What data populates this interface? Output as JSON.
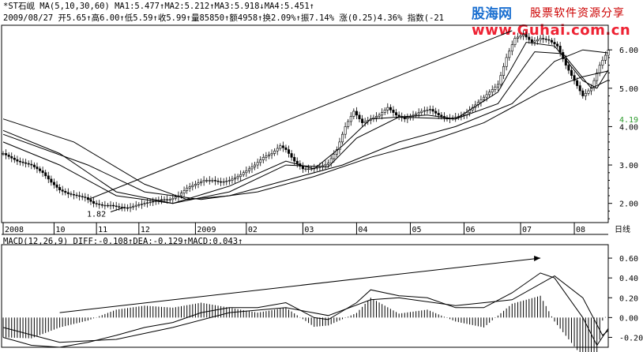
{
  "header": {
    "line1": "*ST石岘 MA(5,10,30,60) MA1:5.477↑MA2:5.212↑MA3:5.918↓MA4:5.451↑",
    "line2": "2009/08/27 开5.65↑高6.00↑低5.59↑收5.99↑量85850↑额4958↑换2.09%↑振7.14% 涨(0.25)4.36% 指数(-21"
  },
  "macd_header": "MACD(12,26,9) DIFF:-0.108↑DEA:-0.129↑MACD:0.043↑",
  "logo": {
    "main": "股海网",
    "sub": "股票软件资源分享",
    "url": "www.Guhai.com.cn"
  },
  "period_label": "日线",
  "colors": {
    "line": "#000000",
    "current_price": "#2a9a2a",
    "logo_blue": "#1a6fd0",
    "logo_red": "#e02020"
  },
  "chart_data": [
    {
      "type": "line",
      "name": "price",
      "title": "",
      "x_labels": [
        "2008",
        "10",
        "11",
        "12",
        "2009",
        "02",
        "03",
        "04",
        "05",
        "06",
        "07",
        "08"
      ],
      "ylim": [
        1.5,
        6.6
      ],
      "yticks": [
        "6.00",
        "5.00",
        "4.00",
        "3.00",
        "2.00"
      ],
      "current_price": "4.19",
      "low_annotation": "1.82",
      "close_points": [
        [
          0,
          3.3
        ],
        [
          5,
          3.1
        ],
        [
          10,
          3.0
        ],
        [
          14,
          2.8
        ],
        [
          17,
          2.55
        ],
        [
          20,
          2.35
        ],
        [
          23,
          2.25
        ],
        [
          26,
          2.2
        ],
        [
          29,
          2.15
        ],
        [
          32,
          2.0
        ],
        [
          35,
          1.95
        ],
        [
          38,
          1.95
        ],
        [
          41,
          1.9
        ],
        [
          44,
          1.88
        ],
        [
          47,
          1.95
        ],
        [
          50,
          2.0
        ],
        [
          53,
          2.05
        ],
        [
          56,
          2.1
        ],
        [
          59,
          2.1
        ],
        [
          62,
          2.2
        ],
        [
          65,
          2.4
        ],
        [
          68,
          2.5
        ],
        [
          71,
          2.6
        ],
        [
          74,
          2.6
        ],
        [
          77,
          2.55
        ],
        [
          80,
          2.6
        ],
        [
          83,
          2.7
        ],
        [
          86,
          2.85
        ],
        [
          89,
          3.0
        ],
        [
          92,
          3.2
        ],
        [
          95,
          3.3
        ],
        [
          98,
          3.5
        ],
        [
          100,
          3.4
        ],
        [
          103,
          3.1
        ],
        [
          106,
          2.9
        ],
        [
          109,
          2.9
        ],
        [
          112,
          2.95
        ],
        [
          115,
          3.05
        ],
        [
          118,
          3.4
        ],
        [
          121,
          4.0
        ],
        [
          124,
          4.4
        ],
        [
          127,
          4.1
        ],
        [
          130,
          4.2
        ],
        [
          133,
          4.3
        ],
        [
          136,
          4.5
        ],
        [
          139,
          4.3
        ],
        [
          142,
          4.2
        ],
        [
          145,
          4.3
        ],
        [
          148,
          4.4
        ],
        [
          151,
          4.45
        ],
        [
          154,
          4.3
        ],
        [
          157,
          4.2
        ],
        [
          160,
          4.25
        ],
        [
          163,
          4.3
        ],
        [
          166,
          4.5
        ],
        [
          169,
          4.7
        ],
        [
          172,
          4.9
        ],
        [
          175,
          5.1
        ],
        [
          178,
          5.8
        ],
        [
          181,
          6.3
        ],
        [
          184,
          6.4
        ],
        [
          187,
          6.2
        ],
        [
          190,
          6.3
        ],
        [
          193,
          6.25
        ],
        [
          196,
          6.1
        ],
        [
          199,
          5.6
        ],
        [
          202,
          5.2
        ],
        [
          205,
          4.8
        ],
        [
          208,
          5.0
        ],
        [
          211,
          5.6
        ],
        [
          214,
          5.99
        ]
      ],
      "ma_series": [
        {
          "values": [
            [
              0,
              3.6
            ],
            [
              20,
              3.0
            ],
            [
              40,
              2.2
            ],
            [
              60,
              2.0
            ],
            [
              80,
              2.45
            ],
            [
              100,
              3.1
            ],
            [
              110,
              2.9
            ],
            [
              120,
              3.5
            ],
            [
              130,
              4.2
            ],
            [
              150,
              4.3
            ],
            [
              160,
              4.2
            ],
            [
              175,
              4.9
            ],
            [
              185,
              6.2
            ],
            [
              195,
              6.1
            ],
            [
              205,
              5.2
            ],
            [
              210,
              5.0
            ],
            [
              214,
              5.48
            ]
          ]
        },
        {
          "values": [
            [
              0,
              3.9
            ],
            [
              20,
              3.3
            ],
            [
              40,
              2.3
            ],
            [
              60,
              2.0
            ],
            [
              80,
              2.3
            ],
            [
              100,
              3.0
            ],
            [
              115,
              2.95
            ],
            [
              125,
              3.7
            ],
            [
              140,
              4.25
            ],
            [
              160,
              4.2
            ],
            [
              175,
              4.6
            ],
            [
              188,
              5.95
            ],
            [
              198,
              5.9
            ],
            [
              208,
              5.0
            ],
            [
              214,
              5.21
            ]
          ]
        },
        {
          "values": [
            [
              0,
              4.2
            ],
            [
              25,
              3.6
            ],
            [
              50,
              2.5
            ],
            [
              65,
              2.1
            ],
            [
              80,
              2.2
            ],
            [
              100,
              2.6
            ],
            [
              120,
              3.0
            ],
            [
              140,
              3.6
            ],
            [
              160,
              4.0
            ],
            [
              180,
              4.6
            ],
            [
              195,
              5.7
            ],
            [
              205,
              6.0
            ],
            [
              214,
              5.92
            ]
          ]
        },
        {
          "values": [
            [
              0,
              3.8
            ],
            [
              30,
              3.0
            ],
            [
              50,
              2.3
            ],
            [
              70,
              2.1
            ],
            [
              90,
              2.3
            ],
            [
              110,
              2.7
            ],
            [
              130,
              3.2
            ],
            [
              150,
              3.6
            ],
            [
              170,
              4.1
            ],
            [
              190,
              4.9
            ],
            [
              205,
              5.3
            ],
            [
              214,
              5.45
            ]
          ]
        }
      ],
      "trendline": [
        [
          30,
          2.1
        ],
        [
          180,
          6.5
        ]
      ]
    },
    {
      "type": "bar",
      "name": "macd",
      "title": "",
      "ylim": [
        -0.3,
        0.72
      ],
      "yticks": [
        "0.60",
        "0.40",
        "0.20",
        "0.00",
        "-0.20"
      ],
      "diff": [
        [
          0,
          -0.2
        ],
        [
          10,
          -0.28
        ],
        [
          20,
          -0.3
        ],
        [
          30,
          -0.25
        ],
        [
          40,
          -0.18
        ],
        [
          50,
          -0.1
        ],
        [
          60,
          -0.05
        ],
        [
          70,
          0.05
        ],
        [
          80,
          0.1
        ],
        [
          90,
          0.1
        ],
        [
          100,
          0.15
        ],
        [
          110,
          0.0
        ],
        [
          115,
          -0.02
        ],
        [
          125,
          0.15
        ],
        [
          130,
          0.28
        ],
        [
          140,
          0.22
        ],
        [
          150,
          0.2
        ],
        [
          160,
          0.1
        ],
        [
          170,
          0.1
        ],
        [
          180,
          0.25
        ],
        [
          190,
          0.45
        ],
        [
          195,
          0.4
        ],
        [
          205,
          0.0
        ],
        [
          210,
          -0.28
        ],
        [
          214,
          -0.11
        ]
      ],
      "dea": [
        [
          0,
          -0.1
        ],
        [
          20,
          -0.25
        ],
        [
          40,
          -0.22
        ],
        [
          60,
          -0.1
        ],
        [
          80,
          0.05
        ],
        [
          100,
          0.1
        ],
        [
          115,
          0.02
        ],
        [
          130,
          0.18
        ],
        [
          140,
          0.2
        ],
        [
          160,
          0.12
        ],
        [
          180,
          0.18
        ],
        [
          195,
          0.42
        ],
        [
          205,
          0.2
        ],
        [
          212,
          -0.18
        ],
        [
          214,
          -0.13
        ]
      ],
      "trendline": [
        [
          20,
          0.05
        ],
        [
          190,
          0.6
        ]
      ]
    }
  ]
}
